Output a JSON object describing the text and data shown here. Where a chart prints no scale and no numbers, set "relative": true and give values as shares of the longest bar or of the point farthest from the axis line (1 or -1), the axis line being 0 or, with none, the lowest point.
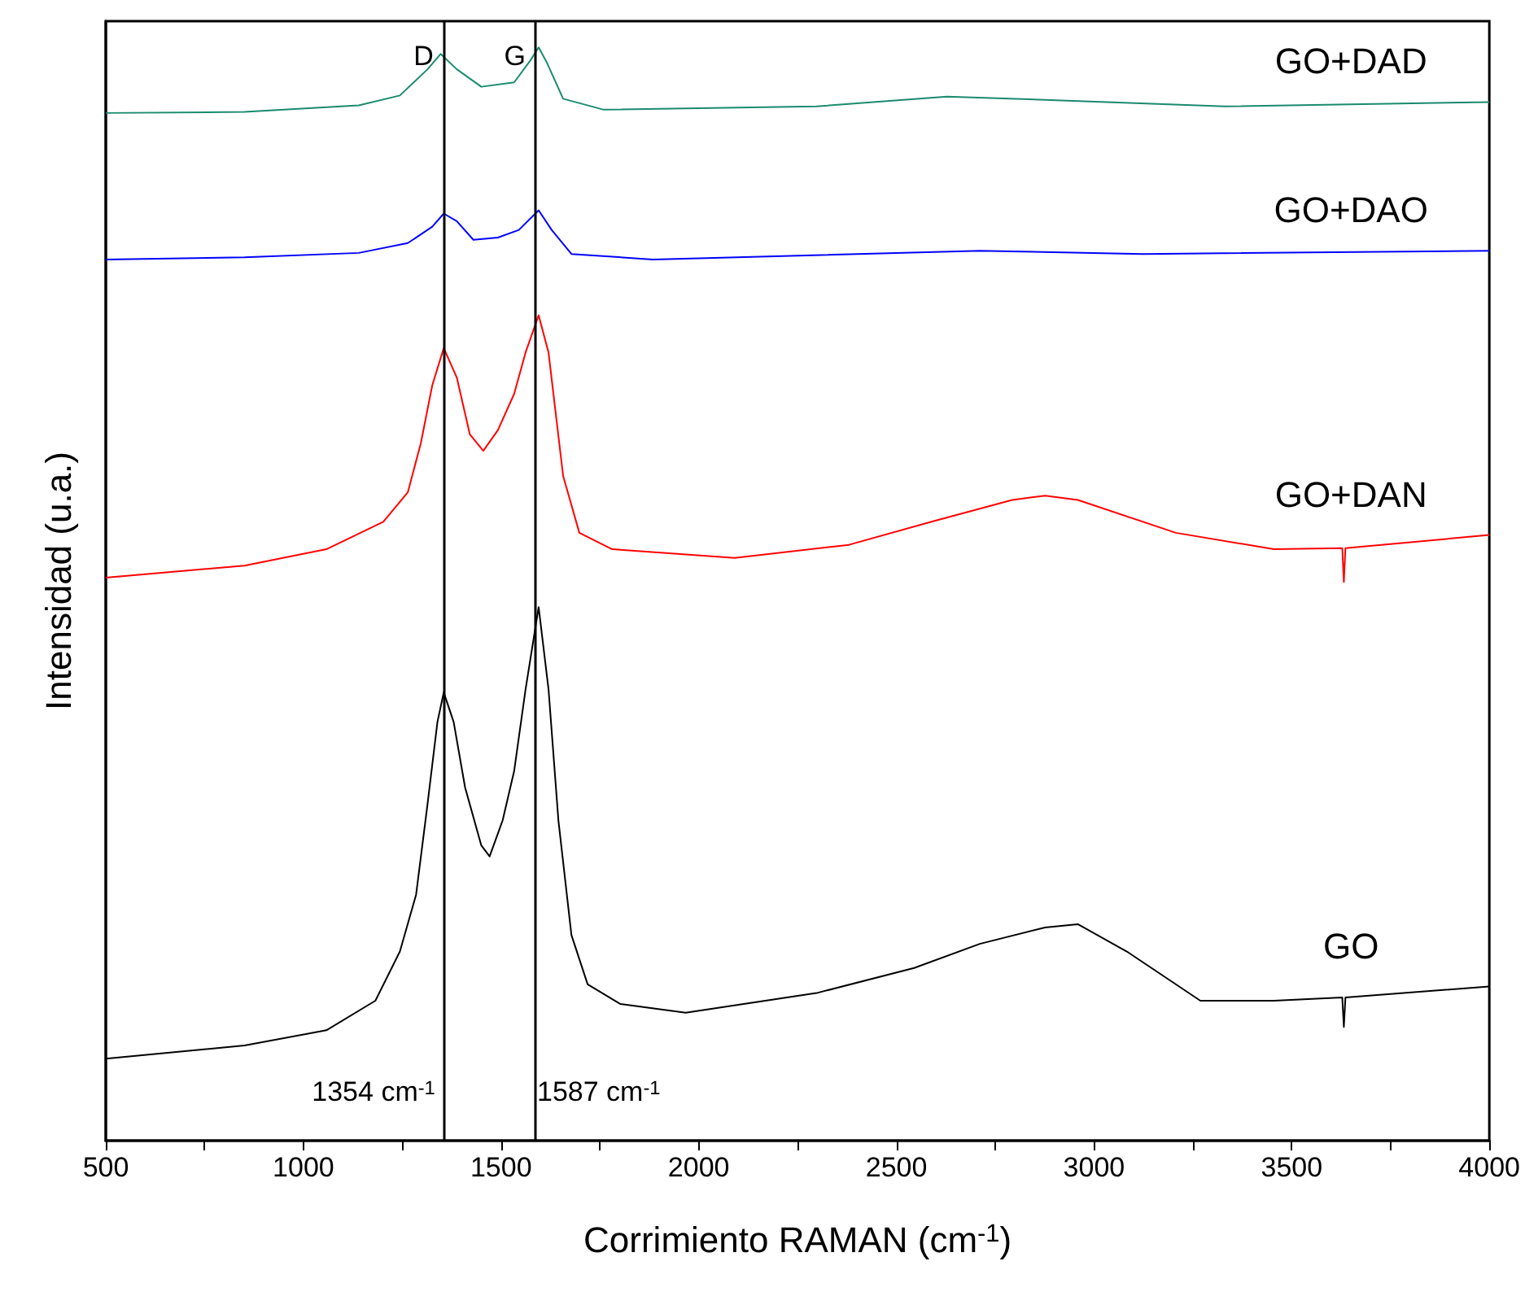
{
  "chart_data": {
    "type": "line",
    "relative": true,
    "xlabel": "Corrimiento RAMAN (cm$^{-1}$)",
    "ylabel": "Intensidad (u.a.)",
    "xlim": [
      500,
      4000
    ],
    "xticks": [
      500,
      {
        "value": 750,
        "label": null
      },
      1000,
      {
        "value": 1250,
        "label": null
      },
      1500,
      {
        "value": 1750,
        "label": null
      },
      2000,
      {
        "value": 2250,
        "label": null
      },
      2500,
      {
        "value": 2750,
        "label": null
      },
      3000,
      {
        "value": 3250,
        "label": null
      },
      3500,
      {
        "value": 3750,
        "label": null
      },
      4000
    ],
    "legend": false,
    "grid": false,
    "marker": "none",
    "line_style": "solid",
    "ref_lines": [
      {
        "axis": "x",
        "value": 1354,
        "label": "D",
        "color": "#000000"
      },
      {
        "axis": "x",
        "value": 1587,
        "label": "G",
        "color": "#000000"
      }
    ],
    "annotations": [
      "1354 cm$^{-1}$",
      "1587 cm$^{-1}$"
    ],
    "series": [
      {
        "name": "GO",
        "color": "#000000",
        "x": [
          500,
          851,
          1058,
          1182,
          1244,
          1285,
          1314,
          1339,
          1355,
          1380,
          1409,
          1450,
          1471,
          1504,
          1533,
          1562,
          1595,
          1620,
          1645,
          1678,
          1719,
          1802,
          1967,
          2298,
          2545,
          2711,
          2876,
          2959,
          3083,
          3269,
          3455,
          3628,
          3632,
          3636,
          4000
        ],
        "values": [
          0.075,
          0.087,
          0.101,
          0.128,
          0.173,
          0.225,
          0.308,
          0.383,
          0.41,
          0.383,
          0.323,
          0.27,
          0.26,
          0.293,
          0.338,
          0.413,
          0.488,
          0.413,
          0.293,
          0.188,
          0.143,
          0.125,
          0.117,
          0.135,
          0.158,
          0.18,
          0.195,
          0.198,
          0.173,
          0.128,
          0.128,
          0.131,
          0.104,
          0.131,
          0.141
        ]
      },
      {
        "name": "GO+DAN",
        "color": "#ff0000",
        "x": [
          500,
          851,
          1058,
          1202,
          1264,
          1297,
          1326,
          1355,
          1388,
          1421,
          1455,
          1492,
          1533,
          1562,
          1595,
          1620,
          1657,
          1698,
          1781,
          2091,
          2380,
          2587,
          2793,
          2876,
          2959,
          3207,
          3455,
          3628,
          3632,
          3636,
          4000
        ],
        "values": [
          0.515,
          0.526,
          0.541,
          0.566,
          0.593,
          0.638,
          0.691,
          0.725,
          0.698,
          0.646,
          0.631,
          0.65,
          0.683,
          0.721,
          0.755,
          0.721,
          0.608,
          0.556,
          0.541,
          0.533,
          0.545,
          0.566,
          0.586,
          0.59,
          0.586,
          0.556,
          0.541,
          0.542,
          0.511,
          0.542,
          0.554
        ]
      },
      {
        "name": "GO+DAO",
        "color": "#0000ff",
        "x": [
          500,
          851,
          1140,
          1264,
          1326,
          1355,
          1388,
          1430,
          1492,
          1545,
          1595,
          1628,
          1678,
          1884,
          2711,
          3124,
          4000
        ],
        "values": [
          0.806,
          0.808,
          0.812,
          0.821,
          0.836,
          0.848,
          0.841,
          0.824,
          0.826,
          0.833,
          0.851,
          0.833,
          0.811,
          0.806,
          0.814,
          0.811,
          0.814
        ]
      },
      {
        "name": "GO+DAD",
        "color": "#1a8a6e",
        "x": [
          500,
          851,
          1140,
          1244,
          1314,
          1347,
          1388,
          1450,
          1533,
          1574,
          1595,
          1616,
          1657,
          1760,
          2298,
          2628,
          2876,
          3331,
          4000
        ],
        "values": [
          0.94,
          0.941,
          0.947,
          0.956,
          0.98,
          0.994,
          0.98,
          0.964,
          0.968,
          0.988,
          1,
          0.986,
          0.953,
          0.943,
          0.946,
          0.955,
          0.952,
          0.946,
          0.95
        ]
      }
    ]
  }
}
